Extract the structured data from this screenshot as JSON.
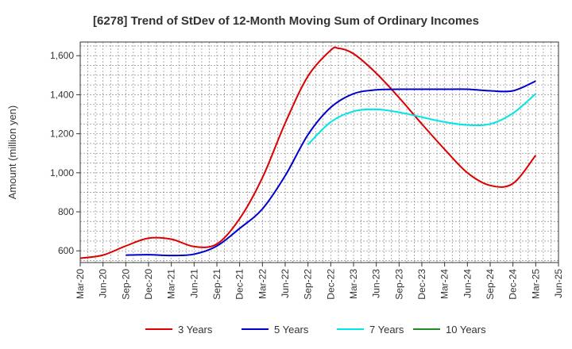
{
  "chart_data": {
    "type": "line",
    "title": "[6278]  Trend of StDev of 12-Month Moving Sum of Ordinary Incomes",
    "xlabel": "",
    "ylabel": "Amount (million yen)",
    "ylim": [
      540,
      1670
    ],
    "yticks": [
      600,
      800,
      1000,
      1200,
      1400,
      1600
    ],
    "ytick_labels": [
      "600",
      "800",
      "1,000",
      "1,200",
      "1,400",
      "1,600"
    ],
    "x_range": [
      "2020-03",
      "2025-06"
    ],
    "x_tick_labels": [
      "Mar-20",
      "Jun-20",
      "Sep-20",
      "Dec-20",
      "Mar-21",
      "Jun-21",
      "Sep-21",
      "Dec-21",
      "Mar-22",
      "Jun-22",
      "Sep-22",
      "Dec-22",
      "Mar-23",
      "Jun-23",
      "Sep-23",
      "Dec-23",
      "Mar-24",
      "Jun-24",
      "Sep-24",
      "Dec-24",
      "Mar-25",
      "Jun-25"
    ],
    "grid": true,
    "legend_position": "bottom",
    "series": [
      {
        "name": "3 Years",
        "color": "#dd0000",
        "x": [
          "2020-03",
          "2020-06",
          "2020-09",
          "2020-12",
          "2021-03",
          "2021-06",
          "2021-09",
          "2021-12",
          "2022-03",
          "2022-06",
          "2022-09",
          "2022-12",
          "2023-01",
          "2023-03",
          "2023-06",
          "2023-09",
          "2023-12",
          "2024-03",
          "2024-06",
          "2024-09",
          "2024-12",
          "2025-03"
        ],
        "values": [
          562,
          578,
          625,
          665,
          660,
          622,
          635,
          765,
          975,
          1255,
          1495,
          1628,
          1638,
          1610,
          1510,
          1385,
          1250,
          1120,
          1000,
          935,
          945,
          1090
        ]
      },
      {
        "name": "5 Years",
        "color": "#0000cc",
        "x": [
          "2020-09",
          "2020-12",
          "2021-03",
          "2021-06",
          "2021-09",
          "2021-12",
          "2022-03",
          "2022-06",
          "2022-09",
          "2022-12",
          "2023-03",
          "2023-06",
          "2023-09",
          "2023-12",
          "2024-03",
          "2024-06",
          "2024-09",
          "2024-12",
          "2025-03"
        ],
        "values": [
          578,
          580,
          576,
          583,
          625,
          715,
          815,
          985,
          1195,
          1335,
          1405,
          1425,
          1428,
          1428,
          1428,
          1428,
          1420,
          1420,
          1470
        ]
      },
      {
        "name": "7 Years",
        "color": "#00e5e5",
        "x": [
          "2022-09",
          "2022-12",
          "2023-03",
          "2023-06",
          "2023-09",
          "2023-12",
          "2024-03",
          "2024-06",
          "2024-09",
          "2024-12",
          "2025-03"
        ],
        "values": [
          1145,
          1260,
          1315,
          1325,
          1310,
          1285,
          1260,
          1245,
          1250,
          1305,
          1405
        ]
      },
      {
        "name": "10 Years",
        "color": "#228b22",
        "x": [],
        "values": []
      }
    ]
  }
}
